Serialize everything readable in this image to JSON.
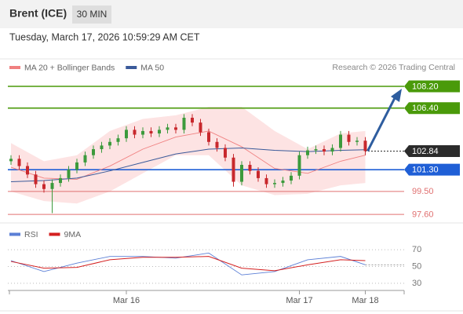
{
  "chart_data": {
    "type": "candlestick",
    "title": "Brent (ICE)",
    "interval": "30 MIN",
    "subtitle": "Tuesday, March 17, 2026 10:59:29 AM CET",
    "legend": [
      {
        "name": "MA 20 + Bollinger Bands",
        "color": "#f08080"
      },
      {
        "name": "MA 50",
        "color": "#3a5a9a"
      }
    ],
    "credit": "Research © 2026 Trading Central",
    "ylim": [
      97.0,
      109.0
    ],
    "candles": {
      "open": [
        102.0,
        102.2,
        101.6,
        100.9,
        100.1,
        99.7,
        100.2,
        100.6,
        101.3,
        101.9,
        102.5,
        103.0,
        103.3,
        103.6,
        103.9,
        104.6,
        104.2,
        104.5,
        104.3,
        104.6,
        104.8,
        104.6,
        105.6,
        105.2,
        104.4,
        103.6,
        103.1,
        102.3,
        100.3,
        101.7,
        101.2,
        100.6,
        100.1,
        100.2,
        100.4,
        100.8,
        102.5,
        102.9,
        103.0,
        102.8,
        103.1,
        104.2,
        103.6,
        103.7
      ],
      "high": [
        102.5,
        102.5,
        101.9,
        101.2,
        100.4,
        100.5,
        100.9,
        101.6,
        102.2,
        102.8,
        103.3,
        103.6,
        103.9,
        104.2,
        104.9,
        104.9,
        104.8,
        104.8,
        104.9,
        105.1,
        105.1,
        105.9,
        105.9,
        105.5,
        104.7,
        103.9,
        103.4,
        102.6,
        102.0,
        102.0,
        101.5,
        100.9,
        100.5,
        100.7,
        101.1,
        102.8,
        103.2,
        103.3,
        103.3,
        103.4,
        104.5,
        104.5,
        104.0,
        104.0
      ],
      "low": [
        101.7,
        101.3,
        100.6,
        99.8,
        99.4,
        97.7,
        99.9,
        100.3,
        101.0,
        101.6,
        102.2,
        102.7,
        103.0,
        103.3,
        103.6,
        103.9,
        103.9,
        104.0,
        104.0,
        104.3,
        104.3,
        104.3,
        104.9,
        104.1,
        103.3,
        102.8,
        102.0,
        99.9,
        100.0,
        100.9,
        100.3,
        99.8,
        99.8,
        99.9,
        100.1,
        100.5,
        102.2,
        102.6,
        102.5,
        102.5,
        102.8,
        103.3,
        103.3,
        102.5
      ],
      "close": [
        102.2,
        101.6,
        100.9,
        100.1,
        99.7,
        100.2,
        100.6,
        101.3,
        101.9,
        102.5,
        103.0,
        103.3,
        103.6,
        103.9,
        104.6,
        104.2,
        104.5,
        104.3,
        104.6,
        104.8,
        104.6,
        105.6,
        105.2,
        104.4,
        103.6,
        103.1,
        102.3,
        100.3,
        101.7,
        101.2,
        100.6,
        100.1,
        100.2,
        100.4,
        100.8,
        102.5,
        102.9,
        103.0,
        102.8,
        103.1,
        104.2,
        103.6,
        103.7,
        102.84
      ],
      "up_color": "#3c9a3c",
      "down_color": "#c8282d"
    },
    "overlay_index": [
      0,
      4,
      8,
      12,
      16,
      20,
      24,
      28,
      32,
      36,
      40,
      43
    ],
    "bands": {
      "upper": [
        103.5,
        102.0,
        102.5,
        104.5,
        105.5,
        105.8,
        106.5,
        106.5,
        104.5,
        103.0,
        104.3,
        104.5
      ],
      "lower": [
        99.5,
        98.7,
        98.5,
        99.5,
        101.0,
        102.5,
        102.5,
        100.0,
        99.2,
        99.3,
        100.0,
        100.2
      ],
      "color": "#fde3e3"
    },
    "ma20": [
      101.5,
      100.6,
      100.5,
      101.6,
      103.0,
      104.0,
      104.5,
      103.2,
      101.4,
      101.0,
      102.0,
      102.5
    ],
    "ma50": [
      100.3,
      100.4,
      100.6,
      101.2,
      101.9,
      102.6,
      103.0,
      103.1,
      102.9,
      102.8,
      102.9,
      102.95
    ],
    "levels": [
      {
        "value": 108.2,
        "label": "108.20",
        "color": "#4a9a0a",
        "tag": true
      },
      {
        "value": 106.4,
        "label": "106.40",
        "color": "#4a9a0a",
        "tag": true
      },
      {
        "value": 102.84,
        "label": "102.84",
        "color": "#2b2b2b",
        "tag": true
      },
      {
        "value": 101.3,
        "label": "101.30",
        "color": "#1f5fd6",
        "tag": true
      },
      {
        "value": 99.5,
        "label": "99.50",
        "color": "#e07070",
        "tag": false
      },
      {
        "value": 97.6,
        "label": "97.60",
        "color": "#e07070",
        "tag": false
      }
    ],
    "rsi": {
      "legend": [
        {
          "name": "RSI",
          "color": "#5b7fd6"
        },
        {
          "name": "9MA",
          "color": "#d42020"
        }
      ],
      "ylim": [
        15,
        85
      ],
      "yticks": [
        70,
        50,
        30
      ],
      "values": [
        57,
        44,
        54,
        62,
        62,
        60,
        66,
        40,
        44,
        58,
        62,
        52
      ],
      "ma": [
        56,
        48,
        49,
        58,
        61,
        61,
        62,
        48,
        45,
        52,
        58,
        57
      ]
    },
    "xlabels": [
      {
        "label": "Mar 16",
        "index": 14
      },
      {
        "label": "Mar 17",
        "index": 35
      },
      {
        "label": "Mar 18",
        "index": 43
      }
    ]
  }
}
